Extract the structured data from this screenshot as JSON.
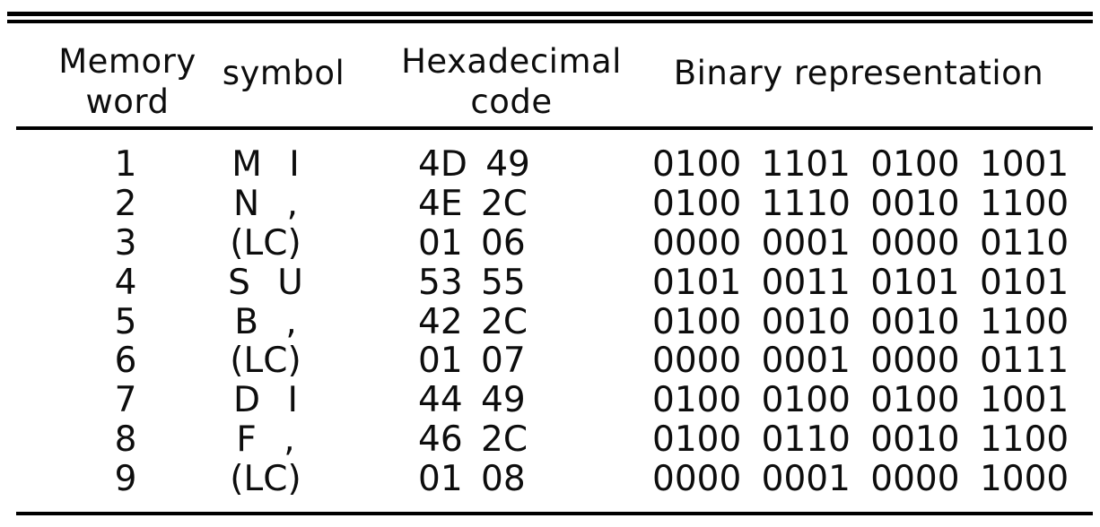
{
  "colors": {
    "background": "#ffffff",
    "text": "#0d0d0d",
    "rule": "#000000"
  },
  "table": {
    "columns": [
      {
        "id": "word",
        "header_lines": [
          "Memory",
          "word"
        ]
      },
      {
        "id": "symbol",
        "header_lines": [
          "symbol"
        ]
      },
      {
        "id": "hex",
        "header_lines": [
          "Hexadecimal",
          "code"
        ]
      },
      {
        "id": "binary",
        "header_lines": [
          "Binary representation"
        ]
      }
    ],
    "rows": [
      {
        "word": "1",
        "symbol": "M I",
        "hex": "4D 49",
        "binary": "0100 1101 0100 1001"
      },
      {
        "word": "2",
        "symbol": "N ,",
        "hex": "4E 2C",
        "binary": "0100 1110 0010 1100"
      },
      {
        "word": "3",
        "symbol": "(LC)",
        "hex": "01 06",
        "binary": "0000 0001 0000 0110"
      },
      {
        "word": "4",
        "symbol": "S U",
        "hex": "53 55",
        "binary": "0101 0011 0101 0101"
      },
      {
        "word": "5",
        "symbol": "B ,",
        "hex": "42 2C",
        "binary": "0100 0010 0010 1100"
      },
      {
        "word": "6",
        "symbol": "(LC)",
        "hex": "01 07",
        "binary": "0000 0001 0000 0111"
      },
      {
        "word": "7",
        "symbol": "D I",
        "hex": "44 49",
        "binary": "0100 0100 0100 1001"
      },
      {
        "word": "8",
        "symbol": "F ,",
        "hex": "46 2C",
        "binary": "0100 0110 0010 1100"
      },
      {
        "word": "9",
        "symbol": "(LC)",
        "hex": "01 08",
        "binary": "0000 0001 0000 1000"
      }
    ]
  }
}
